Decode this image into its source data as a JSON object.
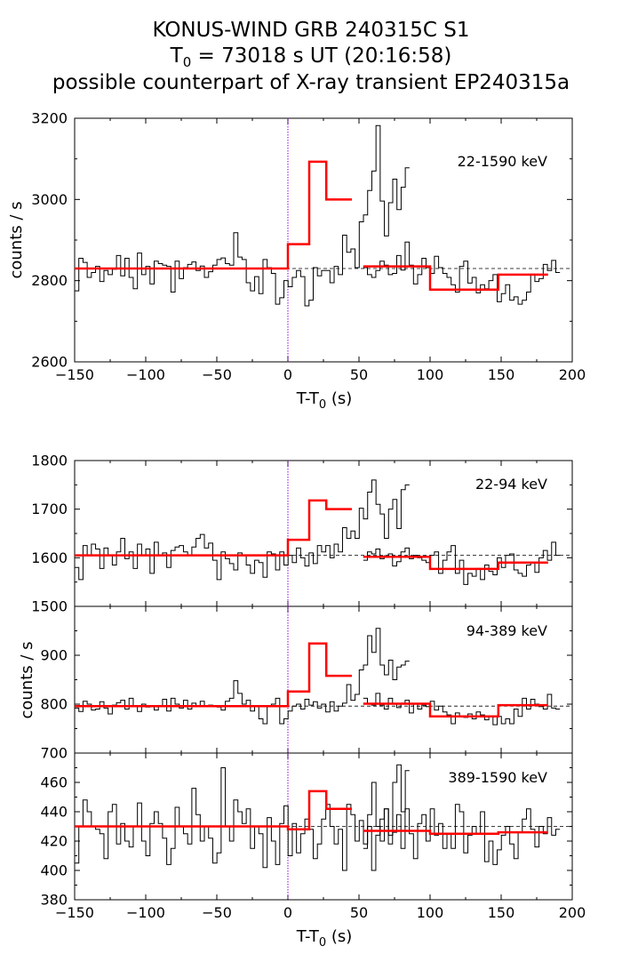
{
  "title": {
    "line1": "KONUS-WIND GRB 240315C S1",
    "line2_prefix": "T",
    "line2_sub": "0",
    "line2_rest": " = 73018 s UT (20:16:58)",
    "line3": "possible counterpart of X-ray transient EP240315a"
  },
  "colors": {
    "data": "#000000",
    "model": "#ff0000",
    "t0_line": "#9400d3",
    "background_line": "#000000"
  },
  "chart_data": [
    {
      "type": "line",
      "band": "22-1590 keV",
      "xlabel_main": "T-T",
      "xlabel_sub": "0",
      "xlabel_unit": " (s)",
      "ylabel": "counts / s",
      "xlim": [
        -150,
        200
      ],
      "ylim": [
        2600,
        3200
      ],
      "xticks": [
        -150,
        -100,
        -50,
        0,
        50,
        100,
        150,
        200
      ],
      "xtick_labels": [
        "−150",
        "−100",
        "−50",
        "0",
        "50",
        "100",
        "150",
        "200"
      ],
      "yticks": [
        2600,
        2800,
        3000,
        3200
      ],
      "ytick_labels": [
        "2600",
        "2800",
        "3000",
        "3200"
      ],
      "background_level": 2830,
      "model_steps": [
        {
          "x0": -150,
          "x1": 0,
          "y": 2830
        },
        {
          "x0": 0,
          "x1": 15,
          "y": 2890
        },
        {
          "x0": 15,
          "x1": 27,
          "y": 3093
        },
        {
          "x0": 27,
          "x1": 45,
          "y": 3000
        },
        {
          "x0": 53,
          "x1": 100,
          "y": 2835
        },
        {
          "x0": 100,
          "x1": 148,
          "y": 2778
        },
        {
          "x0": 148,
          "x1": 183,
          "y": 2815
        }
      ],
      "segments": [
        {
          "start": -150,
          "width": 2.944,
          "values": [
            2775,
            2855,
            2845,
            2808,
            2820,
            2835,
            2798,
            2825,
            2815,
            2828,
            2862,
            2812,
            2855,
            2808,
            2780,
            2868,
            2815,
            2835,
            2792,
            2848,
            2842,
            2838,
            2835,
            2772,
            2848,
            2805,
            2832,
            2840,
            2846,
            2825,
            2836,
            2808,
            2822,
            2838,
            2852,
            2856,
            2842,
            2838,
            2918,
            2858,
            2852,
            2795,
            2775,
            2810,
            2768,
            2852,
            2832,
            2818,
            2742,
            2758,
            2800,
            2785,
            2808,
            2825,
            2810,
            2738,
            2752,
            2832,
            2812,
            2825,
            2825,
            2795,
            2835,
            2815,
            2912,
            2870,
            2878,
            2832,
            2945,
            2962,
            3022,
            3070,
            3182,
            2996,
            2910,
            2992,
            3050,
            2975,
            3030,
            3078
          ]
        },
        {
          "start": 53,
          "width": 2.944,
          "values": [
            2832,
            2815,
            2808,
            2825,
            2848,
            2838,
            2815,
            2818,
            2862,
            2826,
            2895,
            2838,
            2792,
            2815,
            2855,
            2832,
            2818,
            2860,
            2832,
            2818,
            2808,
            2790,
            2772,
            2835,
            2848,
            2794,
            2808,
            2770,
            2790,
            2780,
            2800,
            2815,
            2748,
            2768,
            2790,
            2752,
            2760,
            2742,
            2752,
            2772,
            2816,
            2798,
            2805,
            2840,
            2825,
            2850,
            2820
          ]
        }
      ]
    },
    {
      "type": "line",
      "band": "22-94 keV",
      "ylabel": "",
      "xlim": [
        -150,
        200
      ],
      "ylim": [
        1500,
        1800
      ],
      "yticks": [
        1500,
        1600,
        1700,
        1800
      ],
      "ytick_labels": [
        "1500",
        "1600",
        "1700",
        "1800"
      ],
      "background_level": 1605,
      "model_steps": [
        {
          "x0": -150,
          "x1": 0,
          "y": 1605
        },
        {
          "x0": 0,
          "x1": 15,
          "y": 1637
        },
        {
          "x0": 15,
          "x1": 27,
          "y": 1718
        },
        {
          "x0": 27,
          "x1": 45,
          "y": 1700
        },
        {
          "x0": 53,
          "x1": 100,
          "y": 1602
        },
        {
          "x0": 100,
          "x1": 148,
          "y": 1577
        },
        {
          "x0": 148,
          "x1": 183,
          "y": 1590
        }
      ],
      "segments": [
        {
          "start": -150,
          "width": 2.944,
          "values": [
            1580,
            1555,
            1625,
            1605,
            1628,
            1618,
            1578,
            1620,
            1605,
            1585,
            1612,
            1640,
            1598,
            1612,
            1578,
            1628,
            1605,
            1618,
            1568,
            1632,
            1604,
            1610,
            1580,
            1615,
            1622,
            1625,
            1612,
            1605,
            1622,
            1640,
            1648,
            1620,
            1630,
            1595,
            1555,
            1612,
            1598,
            1588,
            1575,
            1610,
            1605,
            1585,
            1568,
            1595,
            1590,
            1560,
            1612,
            1608,
            1575,
            1612,
            1585,
            1605,
            1590,
            1620,
            1600,
            1583,
            1610,
            1588,
            1625,
            1612,
            1625,
            1600,
            1628,
            1612,
            1662,
            1640,
            1655,
            1640,
            1702,
            1680,
            1735,
            1760,
            1710,
            1690,
            1640,
            1700,
            1720,
            1660,
            1740,
            1750
          ]
        },
        {
          "start": 53,
          "width": 2.944,
          "values": [
            1595,
            1612,
            1608,
            1618,
            1598,
            1604,
            1608,
            1583,
            1592,
            1612,
            1620,
            1598,
            1605,
            1600,
            1595,
            1590,
            1605,
            1612,
            1568,
            1595,
            1612,
            1625,
            1568,
            1595,
            1545,
            1568,
            1562,
            1578,
            1555,
            1585,
            1572,
            1565,
            1600,
            1580,
            1605,
            1608,
            1575,
            1568,
            1562,
            1585,
            1590,
            1570,
            1600,
            1615,
            1595,
            1632,
            1605
          ]
        }
      ]
    },
    {
      "type": "line",
      "band": "94-389 keV",
      "ylabel": "counts / s",
      "xlim": [
        -150,
        200
      ],
      "ylim": [
        700,
        1000
      ],
      "yticks": [
        700,
        800,
        900
      ],
      "ytick_labels": [
        "700",
        "800",
        "900"
      ],
      "background_level": 796,
      "model_steps": [
        {
          "x0": -150,
          "x1": 0,
          "y": 796
        },
        {
          "x0": 0,
          "x1": 15,
          "y": 826
        },
        {
          "x0": 15,
          "x1": 27,
          "y": 924
        },
        {
          "x0": 27,
          "x1": 45,
          "y": 858
        },
        {
          "x0": 53,
          "x1": 100,
          "y": 801
        },
        {
          "x0": 100,
          "x1": 148,
          "y": 775
        },
        {
          "x0": 148,
          "x1": 183,
          "y": 798
        }
      ],
      "segments": [
        {
          "start": -150,
          "width": 2.944,
          "values": [
            792,
            785,
            806,
            800,
            788,
            790,
            805,
            792,
            780,
            798,
            803,
            808,
            790,
            812,
            796,
            785,
            800,
            794,
            796,
            788,
            795,
            810,
            786,
            812,
            800,
            792,
            808,
            790,
            802,
            796,
            806,
            795,
            798,
            796,
            794,
            788,
            806,
            812,
            848,
            822,
            800,
            808,
            786,
            796,
            770,
            760,
            795,
            800,
            812,
            760,
            770,
            786,
            796,
            800,
            790,
            810,
            798,
            805,
            792,
            800,
            784,
            805,
            786,
            796,
            802,
            840,
            808,
            820,
            870,
            880,
            940,
            906,
            955,
            880,
            860,
            890,
            850,
            876,
            880,
            888
          ]
        },
        {
          "start": 53,
          "width": 2.944,
          "values": [
            812,
            800,
            798,
            822,
            798,
            790,
            812,
            800,
            793,
            802,
            808,
            782,
            800,
            790,
            798,
            795,
            806,
            788,
            796,
            784,
            778,
            760,
            782,
            776,
            773,
            780,
            770,
            784,
            778,
            768,
            776,
            758,
            775,
            760,
            770,
            760,
            790,
            775,
            812,
            790,
            810,
            800,
            795,
            790,
            820,
            792,
            790
          ]
        }
      ]
    },
    {
      "type": "line",
      "band": "389-1590 keV",
      "ylabel": "",
      "xlabel_main": "T-T",
      "xlabel_sub": "0",
      "xlabel_unit": " (s)",
      "xlim": [
        -150,
        200
      ],
      "ylim": [
        380,
        480
      ],
      "xticks": [
        -150,
        -100,
        -50,
        0,
        50,
        100,
        150,
        200
      ],
      "xtick_labels": [
        "−150",
        "−100",
        "−50",
        "0",
        "50",
        "100",
        "150",
        "200"
      ],
      "yticks": [
        380,
        400,
        420,
        440,
        460
      ],
      "ytick_labels": [
        "380",
        "400",
        "420",
        "440",
        "460"
      ],
      "background_level": 430,
      "model_steps": [
        {
          "x0": -150,
          "x1": 0,
          "y": 430
        },
        {
          "x0": 0,
          "x1": 15,
          "y": 428
        },
        {
          "x0": 15,
          "x1": 27,
          "y": 454
        },
        {
          "x0": 27,
          "x1": 45,
          "y": 442
        },
        {
          "x0": 53,
          "x1": 100,
          "y": 427
        },
        {
          "x0": 100,
          "x1": 148,
          "y": 425
        },
        {
          "x0": 148,
          "x1": 183,
          "y": 426
        }
      ],
      "segments": [
        {
          "start": -150,
          "width": 2.944,
          "values": [
            405,
            430,
            448,
            440,
            430,
            428,
            425,
            408,
            440,
            445,
            418,
            432,
            420,
            416,
            430,
            446,
            420,
            410,
            432,
            440,
            432,
            422,
            404,
            415,
            443,
            430,
            425,
            418,
            456,
            438,
            420,
            430,
            422,
            405,
            412,
            470,
            430,
            420,
            448,
            440,
            432,
            442,
            415,
            430,
            425,
            402,
            436,
            420,
            404,
            432,
            444,
            410,
            432,
            412,
            425,
            435,
            428,
            408,
            418,
            435,
            445,
            430,
            418,
            428,
            400,
            445,
            438,
            420,
            434,
            418,
            438,
            460,
            430,
            420,
            442,
            424,
            460,
            472,
            440,
            468
          ]
        },
        {
          "start": 53,
          "width": 2.944,
          "values": [
            415,
            430,
            400,
            424,
            435,
            442,
            418,
            426,
            438,
            415,
            442,
            425,
            408,
            432,
            438,
            420,
            442,
            424,
            432,
            415,
            425,
            415,
            445,
            440,
            412,
            424,
            430,
            425,
            440,
            406,
            420,
            404,
            414,
            424,
            430,
            418,
            408,
            426,
            435,
            442,
            428,
            416,
            430,
            425,
            436,
            424,
            428
          ]
        }
      ]
    }
  ]
}
